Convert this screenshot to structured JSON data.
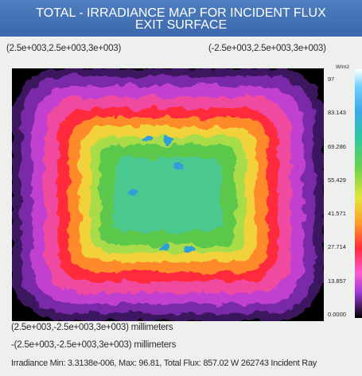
{
  "title": {
    "line1": "TOTAL - IRRADIANCE MAP FOR INCIDENT FLUX",
    "line2": "EXIT SURFACE"
  },
  "coordinates": {
    "top_left": "(2.5e+003,2.5e+003,3e+003)",
    "top_right": "(-2.5e+003,2.5e+003,3e+003)",
    "bottom_left": "(2.5e+003,-2.5e+003,3e+003) millimeters",
    "bottom_left_2": "-(2.5e+003,-2.5e+003,3e+003) millimeters"
  },
  "stats": "Irradiance Min: 3.3138e-006, Max: 96.81, Total Flux: 857.02 W 262743 Incident Ray",
  "chart_data": {
    "type": "heatmap",
    "title": "TOTAL - IRRADIANCE MAP FOR INCIDENT FLUX EXIT SURFACE",
    "colorbar": {
      "unit": "W/m2",
      "tick_labels": [
        "97",
        "83.143",
        "69.286",
        "55.429",
        "41.571",
        "27.714",
        "13.857",
        "0.0000"
      ],
      "ticks": [
        97,
        83.143,
        69.286,
        55.429,
        41.571,
        27.714,
        13.857,
        0.0
      ],
      "range": [
        0,
        97
      ]
    },
    "x_range_mm": [
      2500,
      -2500
    ],
    "y_range_mm": [
      -2500,
      2500
    ],
    "z_mm": 3000,
    "irradiance_min": 3.3138e-06,
    "irradiance_max": 96.81,
    "total_flux_W": 857.02,
    "incident_rays": 262743,
    "description_of_field": "high irradiance (green/yellow, ~55-70 W/m2) in a central square, falling through red/orange to magenta/purple (~0-27 W/m2) toward the black corners"
  }
}
